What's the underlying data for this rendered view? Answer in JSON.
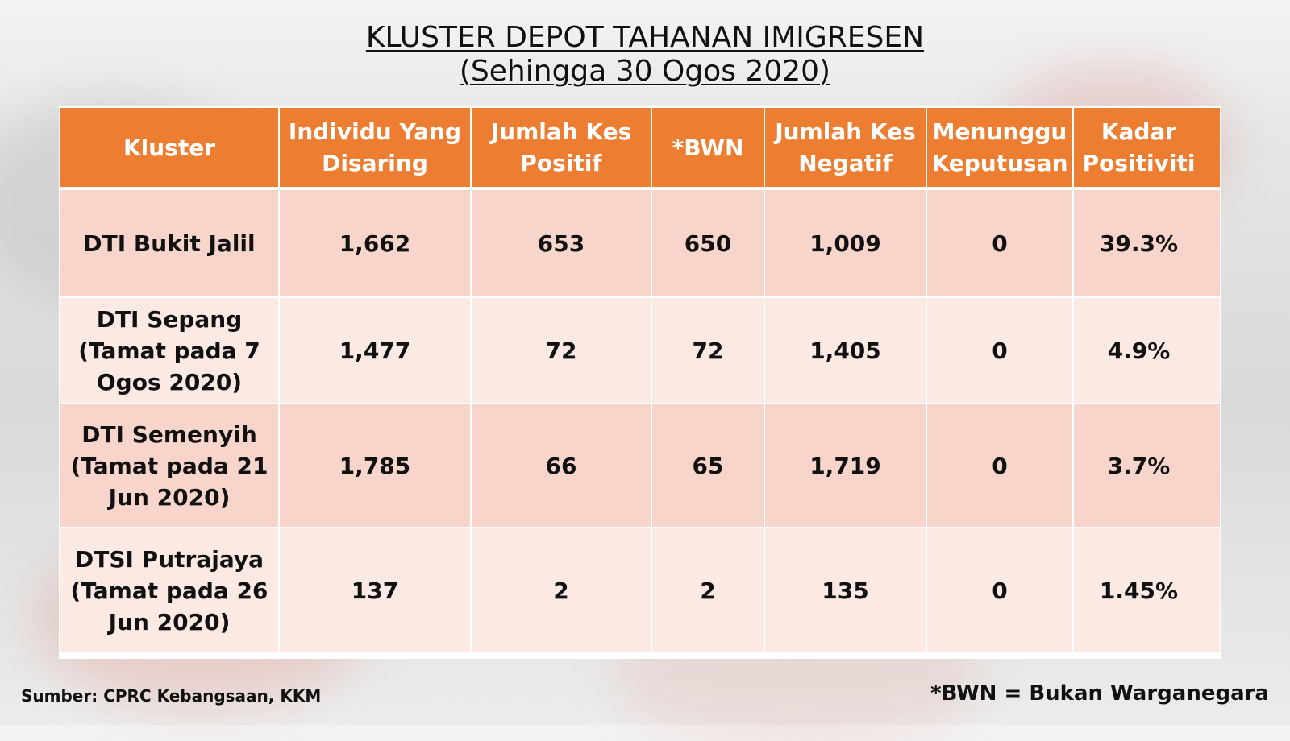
{
  "title": {
    "line1": "KLUSTER DEPOT TAHANAN IMIGRESEN",
    "line2": "(Sehingga 30 Ogos 2020)"
  },
  "table": {
    "headers": [
      "Kluster",
      "Individu Yang Disaring",
      "Jumlah Kes Positif",
      "*BWN",
      "Jumlah Kes Negatif",
      "Menunggu Keputusan",
      "Kadar Positiviti"
    ],
    "rows": [
      [
        "DTI Bukit Jalil",
        "1,662",
        "653",
        "650",
        "1,009",
        "0",
        "39.3%"
      ],
      [
        "DTI Sepang (Tamat pada 7 Ogos 2020)",
        "1,477",
        "72",
        "72",
        "1,405",
        "0",
        "4.9%"
      ],
      [
        "DTI Semenyih (Tamat pada 21 Jun 2020)",
        "1,785",
        "66",
        "65",
        "1,719",
        "0",
        "3.7%"
      ],
      [
        "DTSI Putrajaya (Tamat pada 26 Jun 2020)",
        "137",
        "2",
        "2",
        "135",
        "0",
        "1.45%"
      ]
    ]
  },
  "footer": {
    "source": "Sumber: CPRC Kebangsaan, KKM",
    "note": "*BWN = Bukan Warganegara"
  },
  "colors": {
    "header_bg": "#ed7d31",
    "row_dark": "#f8d5cb",
    "row_light": "#fbe9e4"
  }
}
